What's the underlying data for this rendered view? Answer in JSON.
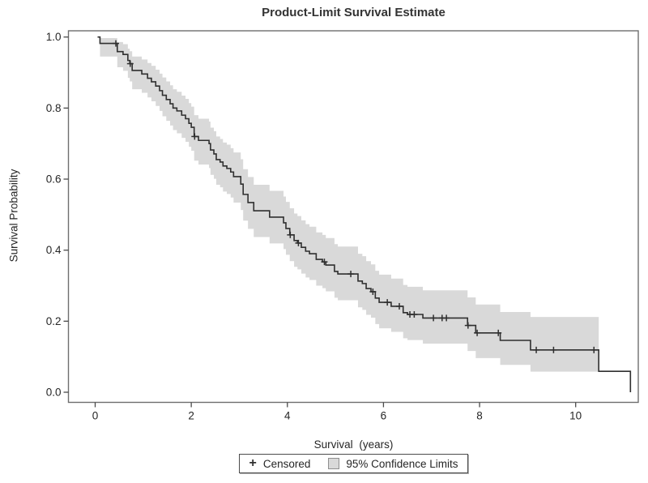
{
  "title": "Product-Limit Survival Estimate",
  "y_axis": {
    "label": "Survival Probability",
    "ticks": [
      {
        "v": 0.0,
        "label": "0.0"
      },
      {
        "v": 0.2,
        "label": "0.2"
      },
      {
        "v": 0.4,
        "label": "0.4"
      },
      {
        "v": 0.6,
        "label": "0.6"
      },
      {
        "v": 0.8,
        "label": "0.8"
      },
      {
        "v": 1.0,
        "label": "1.0"
      }
    ]
  },
  "x_axis": {
    "label": "Survival (years)",
    "ticks": [
      {
        "v": 0,
        "label": "0"
      },
      {
        "v": 2,
        "label": "2"
      },
      {
        "v": 4,
        "label": "4"
      },
      {
        "v": 6,
        "label": "6"
      },
      {
        "v": 8,
        "label": "8"
      },
      {
        "v": 10,
        "label": "10"
      }
    ]
  },
  "legend": {
    "censored_symbol": "+",
    "censored_label": "Censored",
    "ci_label": "95% Confidence Limits"
  },
  "colors": {
    "curve": "#2f2f2f",
    "band": "#d9d9d9",
    "frame": "#6e6e6e",
    "tick": "#4a4a4a",
    "text": "#262626"
  },
  "chart_data": {
    "type": "line",
    "subtype": "kaplan-meier-step",
    "title": "Product-Limit Survival Estimate",
    "xlabel": "Survival (years)",
    "ylabel": "Survival Probability",
    "xlim": [
      -0.56,
      11.3
    ],
    "ylim": [
      -0.025,
      1.017
    ],
    "grid": false,
    "legend_position": "bottom",
    "band_end_time": 10.48,
    "steps": [
      [
        0.05,
        1.0,
        null,
        null
      ],
      [
        0.1,
        0.982,
        0.945,
        0.997
      ],
      [
        0.46,
        0.959,
        0.915,
        0.986
      ],
      [
        0.58,
        0.951,
        0.905,
        0.98
      ],
      [
        0.68,
        0.934,
        0.885,
        0.967
      ],
      [
        0.72,
        0.925,
        0.875,
        0.96
      ],
      [
        0.77,
        0.906,
        0.853,
        0.945
      ],
      [
        0.97,
        0.896,
        0.843,
        0.937
      ],
      [
        1.09,
        0.884,
        0.83,
        0.927
      ],
      [
        1.17,
        0.874,
        0.819,
        0.919
      ],
      [
        1.26,
        0.862,
        0.806,
        0.908
      ],
      [
        1.34,
        0.849,
        0.792,
        0.897
      ],
      [
        1.4,
        0.836,
        0.777,
        0.886
      ],
      [
        1.48,
        0.824,
        0.764,
        0.875
      ],
      [
        1.56,
        0.812,
        0.751,
        0.864
      ],
      [
        1.62,
        0.8,
        0.738,
        0.853
      ],
      [
        1.7,
        0.792,
        0.729,
        0.846
      ],
      [
        1.8,
        0.78,
        0.716,
        0.835
      ],
      [
        1.88,
        0.77,
        0.705,
        0.826
      ],
      [
        1.95,
        0.757,
        0.691,
        0.814
      ],
      [
        2.0,
        0.746,
        0.68,
        0.804
      ],
      [
        2.06,
        0.72,
        0.652,
        0.78
      ],
      [
        2.15,
        0.709,
        0.641,
        0.77
      ],
      [
        2.37,
        0.7,
        0.631,
        0.762
      ],
      [
        2.4,
        0.682,
        0.612,
        0.745
      ],
      [
        2.47,
        0.671,
        0.601,
        0.735
      ],
      [
        2.52,
        0.655,
        0.584,
        0.72
      ],
      [
        2.6,
        0.648,
        0.577,
        0.713
      ],
      [
        2.66,
        0.637,
        0.565,
        0.703
      ],
      [
        2.74,
        0.63,
        0.558,
        0.697
      ],
      [
        2.82,
        0.62,
        0.548,
        0.687
      ],
      [
        2.88,
        0.607,
        0.534,
        0.675
      ],
      [
        3.03,
        0.586,
        0.513,
        0.656
      ],
      [
        3.08,
        0.557,
        0.483,
        0.628
      ],
      [
        3.18,
        0.534,
        0.46,
        0.606
      ],
      [
        3.3,
        0.511,
        0.437,
        0.584
      ],
      [
        3.63,
        0.493,
        0.419,
        0.567
      ],
      [
        3.92,
        0.477,
        0.403,
        0.551
      ],
      [
        3.97,
        0.461,
        0.387,
        0.536
      ],
      [
        4.05,
        0.443,
        0.369,
        0.518
      ],
      [
        4.14,
        0.427,
        0.353,
        0.503
      ],
      [
        4.21,
        0.42,
        0.346,
        0.496
      ],
      [
        4.29,
        0.408,
        0.334,
        0.484
      ],
      [
        4.38,
        0.397,
        0.323,
        0.473
      ],
      [
        4.46,
        0.39,
        0.316,
        0.466
      ],
      [
        4.6,
        0.374,
        0.3,
        0.45
      ],
      [
        4.73,
        0.367,
        0.293,
        0.443
      ],
      [
        4.8,
        0.358,
        0.284,
        0.434
      ],
      [
        4.98,
        0.34,
        0.266,
        0.417
      ],
      [
        5.05,
        0.333,
        0.259,
        0.41
      ],
      [
        5.47,
        0.313,
        0.239,
        0.39
      ],
      [
        5.56,
        0.306,
        0.232,
        0.383
      ],
      [
        5.64,
        0.292,
        0.218,
        0.369
      ],
      [
        5.74,
        0.283,
        0.21,
        0.36
      ],
      [
        5.83,
        0.265,
        0.192,
        0.342
      ],
      [
        5.91,
        0.253,
        0.18,
        0.331
      ],
      [
        6.16,
        0.242,
        0.17,
        0.32
      ],
      [
        6.41,
        0.224,
        0.152,
        0.302
      ],
      [
        6.5,
        0.219,
        0.147,
        0.297
      ],
      [
        6.82,
        0.209,
        0.137,
        0.287
      ],
      [
        7.75,
        0.188,
        0.116,
        0.267
      ],
      [
        7.92,
        0.167,
        0.096,
        0.247
      ],
      [
        8.43,
        0.146,
        0.077,
        0.226
      ],
      [
        9.06,
        0.119,
        0.058,
        0.212
      ],
      [
        10.48,
        0.059,
        null,
        null
      ],
      [
        11.14,
        0.0,
        null,
        null
      ]
    ],
    "censored": [
      [
        0.43,
        0.982
      ],
      [
        0.73,
        0.925
      ],
      [
        2.07,
        0.72
      ],
      [
        4.06,
        0.443
      ],
      [
        4.23,
        0.42
      ],
      [
        4.77,
        0.367
      ],
      [
        5.32,
        0.333
      ],
      [
        5.78,
        0.283
      ],
      [
        6.08,
        0.253
      ],
      [
        6.33,
        0.242
      ],
      [
        6.55,
        0.219
      ],
      [
        6.64,
        0.219
      ],
      [
        7.04,
        0.209
      ],
      [
        7.22,
        0.209
      ],
      [
        7.31,
        0.209
      ],
      [
        7.76,
        0.188
      ],
      [
        7.95,
        0.167
      ],
      [
        8.39,
        0.167
      ],
      [
        9.18,
        0.119
      ],
      [
        9.54,
        0.119
      ],
      [
        10.38,
        0.119
      ]
    ]
  }
}
